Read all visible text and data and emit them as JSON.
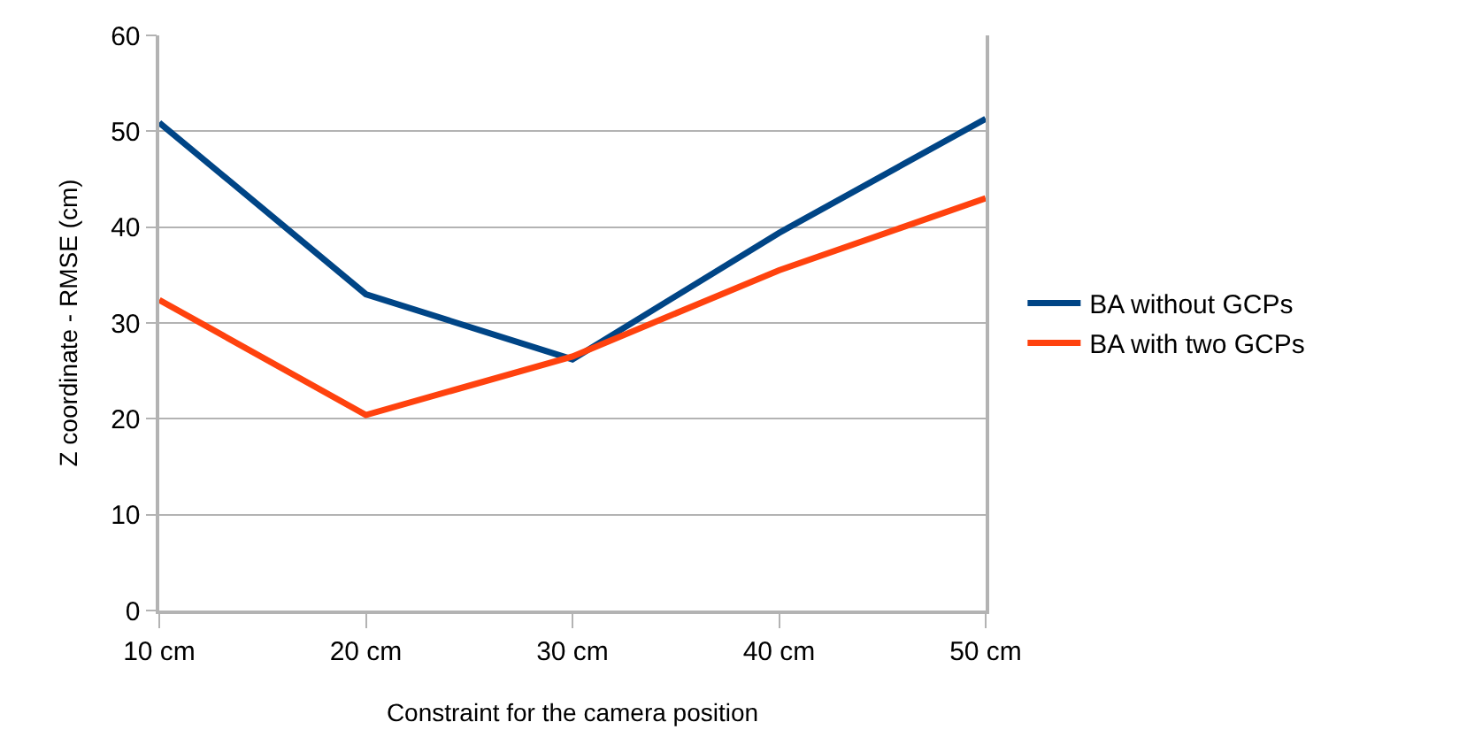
{
  "chart_data": {
    "type": "line",
    "xlabel": "Constraint for the camera position",
    "ylabel": "Z coordinate - RMSE (cm)",
    "categories": [
      "10 cm",
      "20 cm",
      "30 cm",
      "40 cm",
      "50 cm"
    ],
    "series": [
      {
        "name": "BA without GCPs",
        "color": "#004586",
        "values": [
          50.9,
          33.0,
          26.2,
          39.4,
          51.3
        ]
      },
      {
        "name": "BA with two GCPs",
        "color": "#ff420e",
        "values": [
          32.4,
          20.4,
          26.5,
          35.5,
          43.0
        ]
      }
    ],
    "ylim": [
      0,
      60
    ],
    "yticks": [
      0,
      10,
      20,
      30,
      40,
      50,
      60
    ],
    "grid": "y",
    "legend": "right",
    "marker": "none",
    "line_style": "solid"
  }
}
